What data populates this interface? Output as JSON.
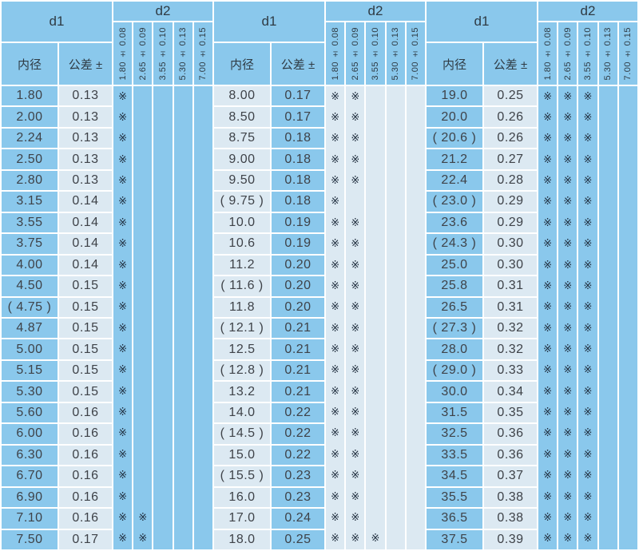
{
  "table": {
    "d1_label": "d1",
    "d2_label": "d2",
    "inner_header": "内径",
    "tolerance_header": "公差 ±",
    "d2_columns": [
      "1.80 ± 0.08",
      "2.65 ± 0.09",
      "3.55 ± 0.10",
      "5.30 ± 0.13",
      "7.00 ± 0.15"
    ],
    "mark": "※",
    "colors": {
      "blue": "#8AC8EC",
      "light": "#DCE9F2",
      "grid": "#FFFFFF",
      "text": "#3E4248",
      "mark": "#1E2C3C"
    },
    "groups": [
      {
        "scheme": "A",
        "rows": [
          {
            "d1": "1.80",
            "tol": "0.13",
            "marks": [
              1,
              0,
              0,
              0,
              0
            ]
          },
          {
            "d1": "2.00",
            "tol": "0.13",
            "marks": [
              1,
              0,
              0,
              0,
              0
            ]
          },
          {
            "d1": "2.24",
            "tol": "0.13",
            "marks": [
              1,
              0,
              0,
              0,
              0
            ]
          },
          {
            "d1": "2.50",
            "tol": "0.13",
            "marks": [
              1,
              0,
              0,
              0,
              0
            ]
          },
          {
            "d1": "2.80",
            "tol": "0.13",
            "marks": [
              1,
              0,
              0,
              0,
              0
            ]
          },
          {
            "d1": "3.15",
            "tol": "0.14",
            "marks": [
              1,
              0,
              0,
              0,
              0
            ]
          },
          {
            "d1": "3.55",
            "tol": "0.14",
            "marks": [
              1,
              0,
              0,
              0,
              0
            ]
          },
          {
            "d1": "3.75",
            "tol": "0.14",
            "marks": [
              1,
              0,
              0,
              0,
              0
            ]
          },
          {
            "d1": "4.00",
            "tol": "0.14",
            "marks": [
              1,
              0,
              0,
              0,
              0
            ]
          },
          {
            "d1": "4.50",
            "tol": "0.15",
            "marks": [
              1,
              0,
              0,
              0,
              0
            ]
          },
          {
            "d1": "( 4.75 )",
            "tol": "0.15",
            "marks": [
              1,
              0,
              0,
              0,
              0
            ]
          },
          {
            "d1": "4.87",
            "tol": "0.15",
            "marks": [
              1,
              0,
              0,
              0,
              0
            ]
          },
          {
            "d1": "5.00",
            "tol": "0.15",
            "marks": [
              1,
              0,
              0,
              0,
              0
            ]
          },
          {
            "d1": "5.15",
            "tol": "0.15",
            "marks": [
              1,
              0,
              0,
              0,
              0
            ]
          },
          {
            "d1": "5.30",
            "tol": "0.15",
            "marks": [
              1,
              0,
              0,
              0,
              0
            ]
          },
          {
            "d1": "5.60",
            "tol": "0.16",
            "marks": [
              1,
              0,
              0,
              0,
              0
            ]
          },
          {
            "d1": "6.00",
            "tol": "0.16",
            "marks": [
              1,
              0,
              0,
              0,
              0
            ]
          },
          {
            "d1": "6.30",
            "tol": "0.16",
            "marks": [
              1,
              0,
              0,
              0,
              0
            ]
          },
          {
            "d1": "6.70",
            "tol": "0.16",
            "marks": [
              1,
              0,
              0,
              0,
              0
            ]
          },
          {
            "d1": "6.90",
            "tol": "0.16",
            "marks": [
              1,
              0,
              0,
              0,
              0
            ]
          },
          {
            "d1": "7.10",
            "tol": "0.16",
            "marks": [
              1,
              1,
              0,
              0,
              0
            ]
          },
          {
            "d1": "7.50",
            "tol": "0.17",
            "marks": [
              1,
              1,
              0,
              0,
              0
            ]
          }
        ]
      },
      {
        "scheme": "B",
        "rows": [
          {
            "d1": "8.00",
            "tol": "0.17",
            "marks": [
              1,
              1,
              0,
              0,
              0
            ]
          },
          {
            "d1": "8.50",
            "tol": "0.17",
            "marks": [
              1,
              1,
              0,
              0,
              0
            ]
          },
          {
            "d1": "8.75",
            "tol": "0.18",
            "marks": [
              1,
              1,
              0,
              0,
              0
            ]
          },
          {
            "d1": "9.00",
            "tol": "0.18",
            "marks": [
              1,
              1,
              0,
              0,
              0
            ]
          },
          {
            "d1": "9.50",
            "tol": "0.18",
            "marks": [
              1,
              1,
              0,
              0,
              0
            ]
          },
          {
            "d1": "( 9.75 )",
            "tol": "0.18",
            "marks": [
              1,
              0,
              0,
              0,
              0
            ]
          },
          {
            "d1": "10.0",
            "tol": "0.19",
            "marks": [
              1,
              1,
              0,
              0,
              0
            ]
          },
          {
            "d1": "10.6",
            "tol": "0.19",
            "marks": [
              1,
              1,
              0,
              0,
              0
            ]
          },
          {
            "d1": "11.2",
            "tol": "0.20",
            "marks": [
              1,
              1,
              0,
              0,
              0
            ]
          },
          {
            "d1": "( 11.6 )",
            "tol": "0.20",
            "marks": [
              1,
              1,
              0,
              0,
              0
            ]
          },
          {
            "d1": "11.8",
            "tol": "0.20",
            "marks": [
              1,
              1,
              0,
              0,
              0
            ]
          },
          {
            "d1": "( 12.1 )",
            "tol": "0.21",
            "marks": [
              1,
              1,
              0,
              0,
              0
            ]
          },
          {
            "d1": "12.5",
            "tol": "0.21",
            "marks": [
              1,
              1,
              0,
              0,
              0
            ]
          },
          {
            "d1": "( 12.8 )",
            "tol": "0.21",
            "marks": [
              1,
              1,
              0,
              0,
              0
            ]
          },
          {
            "d1": "13.2",
            "tol": "0.21",
            "marks": [
              1,
              1,
              0,
              0,
              0
            ]
          },
          {
            "d1": "14.0",
            "tol": "0.22",
            "marks": [
              1,
              1,
              0,
              0,
              0
            ]
          },
          {
            "d1": "( 14.5 )",
            "tol": "0.22",
            "marks": [
              1,
              1,
              0,
              0,
              0
            ]
          },
          {
            "d1": "15.0",
            "tol": "0.22",
            "marks": [
              1,
              1,
              0,
              0,
              0
            ]
          },
          {
            "d1": "( 15.5 )",
            "tol": "0.23",
            "marks": [
              1,
              1,
              0,
              0,
              0
            ]
          },
          {
            "d1": "16.0",
            "tol": "0.23",
            "marks": [
              1,
              1,
              0,
              0,
              0
            ]
          },
          {
            "d1": "17.0",
            "tol": "0.24",
            "marks": [
              1,
              1,
              0,
              0,
              0
            ]
          },
          {
            "d1": "18.0",
            "tol": "0.25",
            "marks": [
              1,
              1,
              1,
              0,
              0
            ]
          }
        ]
      },
      {
        "scheme": "A",
        "rows": [
          {
            "d1": "19.0",
            "tol": "0.25",
            "marks": [
              1,
              1,
              1,
              0,
              0
            ]
          },
          {
            "d1": "20.0",
            "tol": "0.26",
            "marks": [
              1,
              1,
              1,
              0,
              0
            ]
          },
          {
            "d1": "( 20.6 )",
            "tol": "0.26",
            "marks": [
              1,
              1,
              1,
              0,
              0
            ]
          },
          {
            "d1": "21.2",
            "tol": "0.27",
            "marks": [
              1,
              1,
              1,
              0,
              0
            ]
          },
          {
            "d1": "22.4",
            "tol": "0.28",
            "marks": [
              1,
              1,
              1,
              0,
              0
            ]
          },
          {
            "d1": "( 23.0 )",
            "tol": "0.29",
            "marks": [
              1,
              1,
              1,
              0,
              0
            ]
          },
          {
            "d1": "23.6",
            "tol": "0.29",
            "marks": [
              1,
              1,
              1,
              0,
              0
            ]
          },
          {
            "d1": "( 24.3 )",
            "tol": "0.30",
            "marks": [
              1,
              1,
              1,
              0,
              0
            ]
          },
          {
            "d1": "25.0",
            "tol": "0.30",
            "marks": [
              1,
              1,
              1,
              0,
              0
            ]
          },
          {
            "d1": "25.8",
            "tol": "0.31",
            "marks": [
              1,
              1,
              1,
              0,
              0
            ]
          },
          {
            "d1": "26.5",
            "tol": "0.31",
            "marks": [
              1,
              1,
              1,
              0,
              0
            ]
          },
          {
            "d1": "( 27.3 )",
            "tol": "0.32",
            "marks": [
              1,
              1,
              1,
              0,
              0
            ]
          },
          {
            "d1": "28.0",
            "tol": "0.32",
            "marks": [
              1,
              1,
              1,
              0,
              0
            ]
          },
          {
            "d1": "( 29.0 )",
            "tol": "0.33",
            "marks": [
              1,
              1,
              1,
              0,
              0
            ]
          },
          {
            "d1": "30.0",
            "tol": "0.34",
            "marks": [
              1,
              1,
              1,
              0,
              0
            ]
          },
          {
            "d1": "31.5",
            "tol": "0.35",
            "marks": [
              1,
              1,
              1,
              0,
              0
            ]
          },
          {
            "d1": "32.5",
            "tol": "0.36",
            "marks": [
              1,
              1,
              1,
              0,
              0
            ]
          },
          {
            "d1": "33.5",
            "tol": "0.36",
            "marks": [
              1,
              1,
              1,
              0,
              0
            ]
          },
          {
            "d1": "34.5",
            "tol": "0.37",
            "marks": [
              1,
              1,
              1,
              0,
              0
            ]
          },
          {
            "d1": "35.5",
            "tol": "0.38",
            "marks": [
              1,
              1,
              1,
              0,
              0
            ]
          },
          {
            "d1": "36.5",
            "tol": "0.38",
            "marks": [
              1,
              1,
              1,
              0,
              0
            ]
          },
          {
            "d1": "37.5",
            "tol": "0.39",
            "marks": [
              1,
              1,
              1,
              0,
              0
            ]
          }
        ]
      }
    ]
  }
}
